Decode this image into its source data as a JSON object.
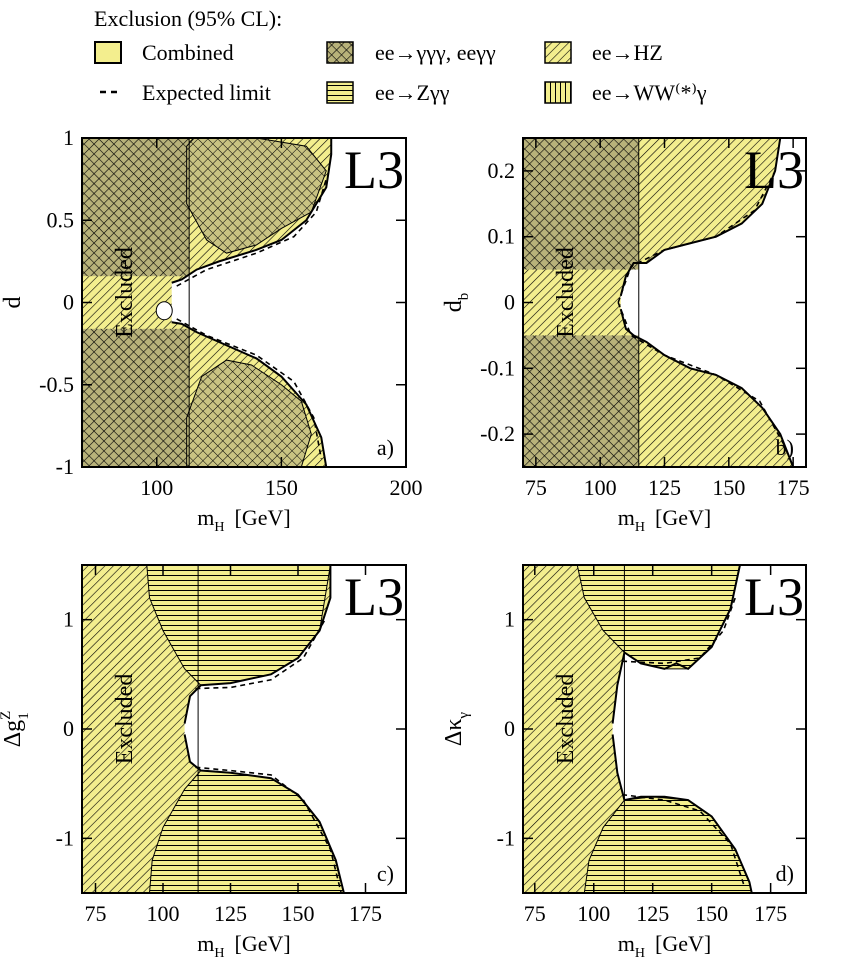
{
  "legend": {
    "title": "Exclusion (95% CL):",
    "items": [
      {
        "key": "combined",
        "label": "Combined",
        "pattern": "solid-yellow"
      },
      {
        "key": "expected",
        "label": "Expected limit",
        "pattern": "dashed-line"
      },
      {
        "key": "gg",
        "label": "ee→γγγ, eeγγ",
        "pattern": "crosshatch"
      },
      {
        "key": "zgg",
        "label": "ee→Zγγ",
        "pattern": "horizontal-lines"
      },
      {
        "key": "hz",
        "label": "ee→HZ",
        "pattern": "diagonal-lines"
      },
      {
        "key": "wwg",
        "label": "ee→WW⁽*⁾γ",
        "pattern": "vertical-lines"
      }
    ]
  },
  "colors": {
    "fill": "#f3ee8e",
    "stroke": "#000000"
  },
  "chart_data": [
    {
      "panel": "a)",
      "type": "area",
      "brand": "L3",
      "region_label": "Excluded",
      "xlabel": "m",
      "xlabel_sub": "H",
      "xlabel_unit": "[GeV]",
      "ylabel": "d",
      "ylabel_sub": "",
      "ylabel_sup": "",
      "xlim": [
        70,
        200
      ],
      "ylim": [
        -1,
        1
      ],
      "xticks": [
        100,
        150,
        200
      ],
      "yticks": [
        -1,
        -0.5,
        0,
        0.5,
        1
      ],
      "yticklabels": [
        "-1",
        "-0.5",
        "0",
        "0.5",
        "1"
      ],
      "channel_boundary_x": 113,
      "hz_band_y": [
        -0.16,
        0.16
      ],
      "upper_boundary": [
        [
          106,
          0.12
        ],
        [
          110,
          0.14
        ],
        [
          116,
          0.2
        ],
        [
          125,
          0.25
        ],
        [
          140,
          0.32
        ],
        [
          150,
          0.38
        ],
        [
          160,
          0.5
        ],
        [
          168,
          0.7
        ],
        [
          170,
          0.9
        ],
        [
          170,
          1.0
        ]
      ],
      "lower_boundary": [
        [
          106,
          -0.12
        ],
        [
          110,
          -0.13
        ],
        [
          116,
          -0.18
        ],
        [
          125,
          -0.24
        ],
        [
          140,
          -0.34
        ],
        [
          150,
          -0.45
        ],
        [
          160,
          -0.62
        ],
        [
          166,
          -0.82
        ],
        [
          168,
          -1.0
        ]
      ],
      "upper_island": [
        [
          115,
          1.0
        ],
        [
          140,
          1.0
        ],
        [
          160,
          0.95
        ],
        [
          168,
          0.8
        ],
        [
          162,
          0.55
        ],
        [
          150,
          0.45
        ],
        [
          140,
          0.35
        ],
        [
          128,
          0.3
        ],
        [
          120,
          0.38
        ],
        [
          112,
          0.6
        ],
        [
          112,
          0.95
        ]
      ],
      "lower_island": [
        [
          112,
          -1.0
        ],
        [
          158,
          -1.0
        ],
        [
          162,
          -0.8
        ],
        [
          158,
          -0.6
        ],
        [
          150,
          -0.5
        ],
        [
          138,
          -0.38
        ],
        [
          128,
          -0.35
        ],
        [
          118,
          -0.45
        ],
        [
          112,
          -0.7
        ]
      ],
      "expected_upper": [
        [
          108,
          0.1
        ],
        [
          120,
          0.2
        ],
        [
          140,
          0.3
        ],
        [
          155,
          0.4
        ],
        [
          164,
          0.55
        ],
        [
          168,
          0.75
        ]
      ],
      "expected_lower": [
        [
          108,
          -0.1
        ],
        [
          120,
          -0.2
        ],
        [
          140,
          -0.32
        ],
        [
          155,
          -0.48
        ],
        [
          163,
          -0.7
        ],
        [
          166,
          -0.95
        ]
      ]
    },
    {
      "panel": "b)",
      "type": "area",
      "brand": "L3",
      "region_label": "Excluded",
      "xlabel": "m",
      "xlabel_sub": "H",
      "xlabel_unit": "[GeV]",
      "ylabel": "d",
      "ylabel_sub": "b",
      "ylabel_sup": "",
      "xlim": [
        70,
        180
      ],
      "ylim": [
        -0.25,
        0.25
      ],
      "xticks": [
        75,
        100,
        125,
        150,
        175
      ],
      "yticks": [
        -0.2,
        -0.1,
        0,
        0.1,
        0.2
      ],
      "yticklabels": [
        "-0.2",
        "-0.1",
        "0",
        "0.1",
        "0.2"
      ],
      "channel_boundary_x": 115,
      "hz_band_y": [
        -0.05,
        0.05
      ],
      "upper_boundary": [
        [
          108,
          0.01
        ],
        [
          110,
          0.04
        ],
        [
          113,
          0.06
        ],
        [
          118,
          0.06
        ],
        [
          125,
          0.08
        ],
        [
          135,
          0.09
        ],
        [
          145,
          0.1
        ],
        [
          155,
          0.12
        ],
        [
          163,
          0.15
        ],
        [
          168,
          0.2
        ],
        [
          170,
          0.25
        ]
      ],
      "lower_boundary": [
        [
          108,
          -0.01
        ],
        [
          110,
          -0.04
        ],
        [
          113,
          -0.05
        ],
        [
          118,
          -0.06
        ],
        [
          125,
          -0.08
        ],
        [
          135,
          -0.1
        ],
        [
          145,
          -0.11
        ],
        [
          155,
          -0.13
        ],
        [
          163,
          -0.16
        ],
        [
          170,
          -0.2
        ],
        [
          175,
          -0.25
        ]
      ],
      "upper_island": null,
      "lower_island": null,
      "expected_upper": [
        [
          107,
          0.0
        ],
        [
          112,
          0.055
        ],
        [
          125,
          0.08
        ],
        [
          145,
          0.1
        ],
        [
          160,
          0.14
        ],
        [
          168,
          0.2
        ]
      ],
      "expected_lower": [
        [
          107,
          0.0
        ],
        [
          112,
          -0.05
        ],
        [
          125,
          -0.08
        ],
        [
          145,
          -0.11
        ],
        [
          162,
          -0.15
        ],
        [
          172,
          -0.22
        ]
      ]
    },
    {
      "panel": "c)",
      "type": "area",
      "brand": "L3",
      "region_label": "Excluded",
      "xlabel": "m",
      "xlabel_sub": "H",
      "xlabel_unit": "[GeV]",
      "ylabel": "Δg",
      "ylabel_sub": "1",
      "ylabel_sup": "Z",
      "xlim": [
        70,
        190
      ],
      "ylim": [
        -1.5,
        1.5
      ],
      "xticks": [
        75,
        100,
        125,
        150,
        175
      ],
      "yticks": [
        -1,
        0,
        1
      ],
      "yticklabels": [
        "-1",
        "0",
        "1"
      ],
      "channel_boundary_x": 113,
      "hz_band_y": null,
      "upper_boundary": [
        [
          108,
          0.05
        ],
        [
          110,
          0.3
        ],
        [
          114,
          0.4
        ],
        [
          125,
          0.42
        ],
        [
          140,
          0.5
        ],
        [
          150,
          0.65
        ],
        [
          158,
          0.9
        ],
        [
          162,
          1.2
        ],
        [
          162,
          1.5
        ]
      ],
      "lower_boundary": [
        [
          108,
          -0.05
        ],
        [
          110,
          -0.3
        ],
        [
          114,
          -0.38
        ],
        [
          125,
          -0.4
        ],
        [
          140,
          -0.45
        ],
        [
          150,
          -0.6
        ],
        [
          158,
          -0.85
        ],
        [
          164,
          -1.2
        ],
        [
          167,
          -1.5
        ]
      ],
      "upper_island": [
        [
          94,
          1.5
        ],
        [
          162,
          1.5
        ],
        [
          158,
          0.9
        ],
        [
          150,
          0.65
        ],
        [
          140,
          0.5
        ],
        [
          125,
          0.42
        ],
        [
          114,
          0.4
        ],
        [
          108,
          0.55
        ],
        [
          100,
          0.9
        ],
        [
          95,
          1.2
        ]
      ],
      "lower_island": [
        [
          95,
          -1.5
        ],
        [
          167,
          -1.5
        ],
        [
          164,
          -1.2
        ],
        [
          158,
          -0.85
        ],
        [
          150,
          -0.6
        ],
        [
          140,
          -0.45
        ],
        [
          125,
          -0.4
        ],
        [
          114,
          -0.38
        ],
        [
          108,
          -0.55
        ],
        [
          100,
          -0.9
        ],
        [
          96,
          -1.2
        ]
      ],
      "expected_upper": [
        [
          112,
          0.37
        ],
        [
          125,
          0.38
        ],
        [
          140,
          0.45
        ],
        [
          152,
          0.65
        ],
        [
          160,
          1.0
        ]
      ],
      "expected_lower": [
        [
          112,
          -0.35
        ],
        [
          125,
          -0.38
        ],
        [
          140,
          -0.42
        ],
        [
          152,
          -0.65
        ],
        [
          162,
          -1.1
        ],
        [
          166,
          -1.5
        ]
      ]
    },
    {
      "panel": "d)",
      "type": "area",
      "brand": "L3",
      "region_label": "Excluded",
      "xlabel": "m",
      "xlabel_sub": "H",
      "xlabel_unit": "[GeV]",
      "ylabel": "Δκ",
      "ylabel_sub": "γ",
      "ylabel_sup": "",
      "xlim": [
        70,
        190
      ],
      "ylim": [
        -1.5,
        1.5
      ],
      "xticks": [
        75,
        100,
        125,
        150,
        175
      ],
      "yticks": [
        -1,
        0,
        1
      ],
      "yticklabels": [
        "-1",
        "0",
        "1"
      ],
      "channel_boundary_x": 113,
      "hz_band_y": null,
      "upper_boundary": [
        [
          108,
          0.05
        ],
        [
          110,
          0.4
        ],
        [
          113,
          0.7
        ],
        [
          120,
          0.6
        ],
        [
          130,
          0.55
        ],
        [
          135,
          0.6
        ],
        [
          140,
          0.55
        ],
        [
          150,
          0.75
        ],
        [
          158,
          1.1
        ],
        [
          162,
          1.5
        ]
      ],
      "lower_boundary": [
        [
          108,
          -0.05
        ],
        [
          110,
          -0.4
        ],
        [
          113,
          -0.65
        ],
        [
          120,
          -0.62
        ],
        [
          130,
          -0.62
        ],
        [
          140,
          -0.65
        ],
        [
          150,
          -0.8
        ],
        [
          160,
          -1.1
        ],
        [
          166,
          -1.4
        ],
        [
          167,
          -1.5
        ]
      ],
      "upper_island": [
        [
          93,
          1.5
        ],
        [
          162,
          1.5
        ],
        [
          158,
          1.1
        ],
        [
          150,
          0.75
        ],
        [
          140,
          0.55
        ],
        [
          130,
          0.55
        ],
        [
          120,
          0.6
        ],
        [
          113,
          0.7
        ],
        [
          104,
          0.9
        ],
        [
          96,
          1.2
        ]
      ],
      "lower_island": [
        [
          96,
          -1.5
        ],
        [
          167,
          -1.5
        ],
        [
          166,
          -1.4
        ],
        [
          160,
          -1.1
        ],
        [
          150,
          -0.8
        ],
        [
          140,
          -0.65
        ],
        [
          125,
          -0.62
        ],
        [
          113,
          -0.65
        ],
        [
          104,
          -0.9
        ],
        [
          98,
          -1.2
        ]
      ],
      "expected_upper": [
        [
          112,
          0.62
        ],
        [
          130,
          0.6
        ],
        [
          145,
          0.65
        ],
        [
          155,
          0.9
        ],
        [
          160,
          1.2
        ]
      ],
      "expected_lower": [
        [
          112,
          -0.6
        ],
        [
          130,
          -0.65
        ],
        [
          145,
          -0.75
        ],
        [
          158,
          -1.05
        ],
        [
          164,
          -1.45
        ]
      ]
    }
  ]
}
